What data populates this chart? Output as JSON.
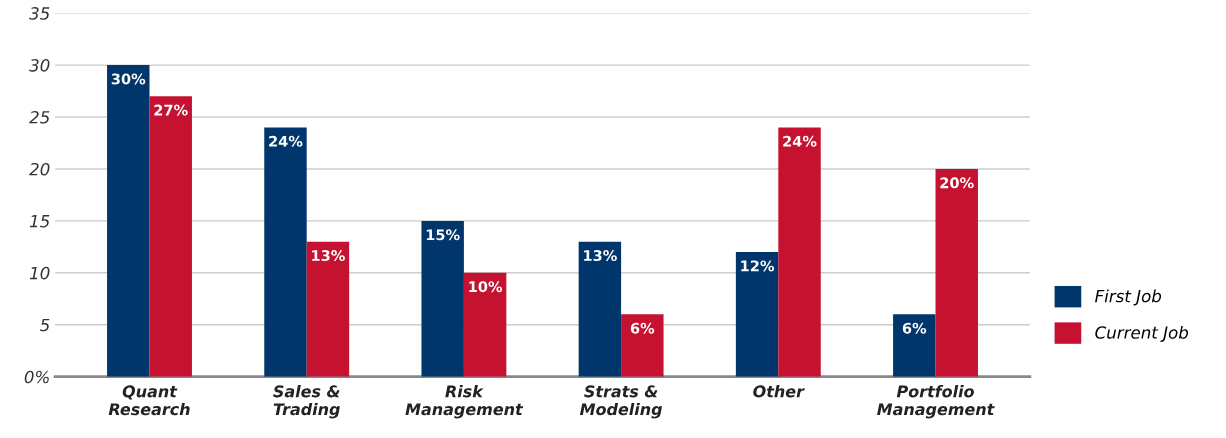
{
  "chart_data": {
    "type": "bar",
    "categories": [
      "Quant\nResearch",
      "Sales &\nTrading",
      "Risk\nManagement",
      "Strats &\nModeling",
      "Other",
      "Portfolio\nManagement"
    ],
    "series": [
      {
        "name": "First Job",
        "color": "#00366b",
        "values": [
          30,
          24,
          15,
          13,
          12,
          6
        ],
        "value_labels": [
          "30%",
          "24%",
          "15%",
          "13%",
          "12%",
          "6%"
        ]
      },
      {
        "name": "Current Job",
        "color": "#c41230",
        "values": [
          27,
          13,
          10,
          6,
          24,
          20
        ],
        "value_labels": [
          "27%",
          "13%",
          "10%",
          "6%",
          "24%",
          "20%"
        ]
      }
    ],
    "ylim": [
      0,
      35
    ],
    "yticks": [
      {
        "value": 0,
        "label": "0%"
      },
      5,
      10,
      15,
      20,
      25,
      30,
      35
    ],
    "grid": "y",
    "legend": "right"
  }
}
